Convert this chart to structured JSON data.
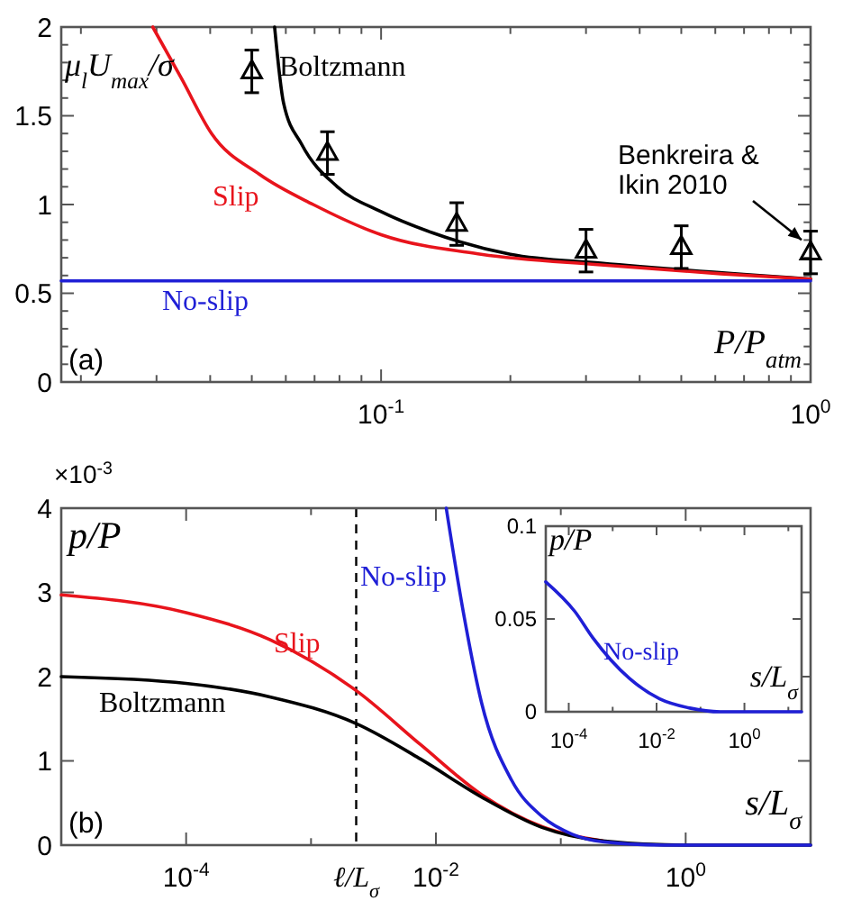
{
  "chart_data": [
    {
      "type": "line",
      "log": "x",
      "xlim": [
        0.018,
        1
      ],
      "ylim": [
        0,
        2
      ],
      "xticks": [
        {
          "value": 0.02,
          "label": null
        },
        {
          "value": 0.03,
          "label": null
        },
        {
          "value": 0.04,
          "label": null
        },
        {
          "value": 0.05,
          "label": null
        },
        {
          "value": 0.06,
          "label": null
        },
        {
          "value": 0.07,
          "label": null
        },
        {
          "value": 0.08,
          "label": null
        },
        {
          "value": 0.09,
          "label": null
        },
        {
          "value": 0.1,
          "label": "10$^{-1}$"
        },
        {
          "value": 0.2,
          "label": null
        },
        {
          "value": 0.3,
          "label": null
        },
        {
          "value": 0.4,
          "label": null
        },
        {
          "value": 0.5,
          "label": null
        },
        {
          "value": 0.6,
          "label": null
        },
        {
          "value": 0.7,
          "label": null
        },
        {
          "value": 0.8,
          "label": null
        },
        {
          "value": 0.9,
          "label": null
        },
        {
          "value": 1,
          "label": "10$^{0}$"
        }
      ],
      "yticks": [
        0,
        {
          "value": 0.1,
          "label": null
        },
        {
          "value": 0.2,
          "label": null
        },
        {
          "value": 0.3,
          "label": null
        },
        {
          "value": 0.4,
          "label": null
        },
        0.5,
        {
          "value": 0.6,
          "label": null
        },
        {
          "value": 0.7,
          "label": null
        },
        {
          "value": 0.8,
          "label": null
        },
        {
          "value": 0.9,
          "label": null
        },
        1,
        {
          "value": 1.1,
          "label": null
        },
        {
          "value": 1.2,
          "label": null
        },
        {
          "value": 1.3,
          "label": null
        },
        {
          "value": 1.4,
          "label": null
        },
        1.5,
        {
          "value": 1.6,
          "label": null
        },
        {
          "value": 1.7,
          "label": null
        },
        {
          "value": 1.8,
          "label": null
        },
        {
          "value": 1.9,
          "label": null
        },
        2
      ],
      "xlabel": "P/P$_{atm}$",
      "ylabel": "μ$_{l}$U$_{max}$/σ",
      "annotations": [
        "(a)"
      ],
      "series": [
        {
          "name": "Boltzmann",
          "color": "#000000",
          "x": [
            0.0565,
            0.0593,
            0.0653,
            0.0791,
            0.1,
            0.132,
            0.2,
            0.325,
            0.618,
            1
          ],
          "values": [
            2,
            1.57,
            1.34,
            1.1,
            0.96,
            0.84,
            0.72,
            0.67,
            null,
            0.58
          ]
        },
        {
          "name": "Slip",
          "color": "#e8141c",
          "x": [
            0.0294,
            0.0343,
            0.0403,
            0.0521,
            0.0695,
            0.1,
            0.171,
            0.325,
            0.618,
            1
          ],
          "values": [
            2,
            1.71,
            1.4,
            1.17,
            1.0,
            0.83,
            0.72,
            0.66,
            0.61,
            0.58
          ]
        },
        {
          "name": "No-slip",
          "color": "#1f1fd6",
          "x": [
            0.018,
            1
          ],
          "values": [
            0.57,
            0.57
          ]
        },
        {
          "name": "Benkreira & Ikin 2010",
          "type": "scatter",
          "marker": "triangle",
          "color": "#000000",
          "x": [
            0.05,
            0.075,
            0.15,
            0.3,
            0.5,
            1
          ],
          "values": [
            1.75,
            1.29,
            0.89,
            0.74,
            0.76,
            0.73
          ],
          "errors": [
            0.12,
            0.12,
            0.12,
            0.12,
            0.12,
            0.12
          ]
        }
      ]
    },
    {
      "type": "line",
      "log": "x",
      "xlim": [
        1e-05,
        10
      ],
      "ylim": [
        0,
        4
      ],
      "xticks": [
        {
          "value": 1e-05,
          "label": null
        },
        {
          "value": 0.0001,
          "label": "10$^{-4}$"
        },
        {
          "value": 0.001,
          "label": null
        },
        {
          "value": 0.01,
          "label": "10$^{-2}$"
        },
        {
          "value": 0.1,
          "label": null
        },
        {
          "value": 1,
          "label": "10$^{0}$"
        },
        {
          "value": 10,
          "label": null
        }
      ],
      "yticks": [
        0,
        1,
        2,
        3,
        4
      ],
      "xlabel": "s/L$_{σ}$",
      "ylabel": "p/P",
      "annotations": [
        "×10$^{-3}$",
        "(b)"
      ],
      "ref_lines": [
        {
          "axis": "x",
          "value": 0.0023,
          "label": "ℓ/L$_{σ}$",
          "line_style": "dashed",
          "color": "#000000"
        }
      ],
      "series": [
        {
          "name": "Slip",
          "color": "#e8141c",
          "x": [
            1e-05,
            0.0001,
            0.000467,
            0.00232,
            0.00757,
            0.0232,
            0.0707,
            0.216
          ],
          "values": [
            2.97,
            2.76,
            2.44,
            1.83,
            1.19,
            0.6,
            0.22,
            0.05
          ]
        },
        {
          "name": "Boltzmann",
          "color": "#000000",
          "x": [
            1e-05,
            0.0001,
            0.000467,
            0.00232,
            0.00757,
            0.0232,
            0.0707,
            0.216,
            1,
            10
          ],
          "values": [
            2.0,
            1.92,
            1.76,
            1.44,
            1.02,
            0.57,
            0.21,
            0.05,
            0,
            0
          ]
        },
        {
          "name": "No-slip",
          "color": "#1f1fd6",
          "x": [
            0.0121,
            0.0166,
            0.0232,
            0.0404,
            0.0707,
            0.123,
            0.216,
            0.65,
            10
          ],
          "values": [
            4,
            2.76,
            1.69,
            0.77,
            0.34,
            0.13,
            0.04,
            0,
            0
          ]
        }
      ]
    },
    {
      "type": "line",
      "log": "x",
      "xlim": [
        3e-05,
        20
      ],
      "ylim": [
        0,
        0.1
      ],
      "xticks": [
        {
          "value": 0.0001,
          "label": "10$^{-4}$"
        },
        {
          "value": 0.001,
          "label": null
        },
        {
          "value": 0.01,
          "label": "10$^{-2}$"
        },
        {
          "value": 0.1,
          "label": null
        },
        {
          "value": 1,
          "label": "10$^{0}$"
        },
        {
          "value": 10,
          "label": null
        }
      ],
      "yticks": [
        0,
        0.05,
        0.1
      ],
      "xlabel": "s/L$_{σ}$",
      "ylabel": "p/P",
      "series": [
        {
          "name": "No-slip",
          "color": "#1f1fd6",
          "x": [
            3e-05,
            0.000138,
            0.00035,
            0.0024,
            0.0117,
            0.057,
            0.28,
            20
          ],
          "values": [
            0.07,
            0.054,
            0.04,
            0.018,
            0.007,
            0.002,
            0,
            0
          ]
        }
      ]
    }
  ]
}
